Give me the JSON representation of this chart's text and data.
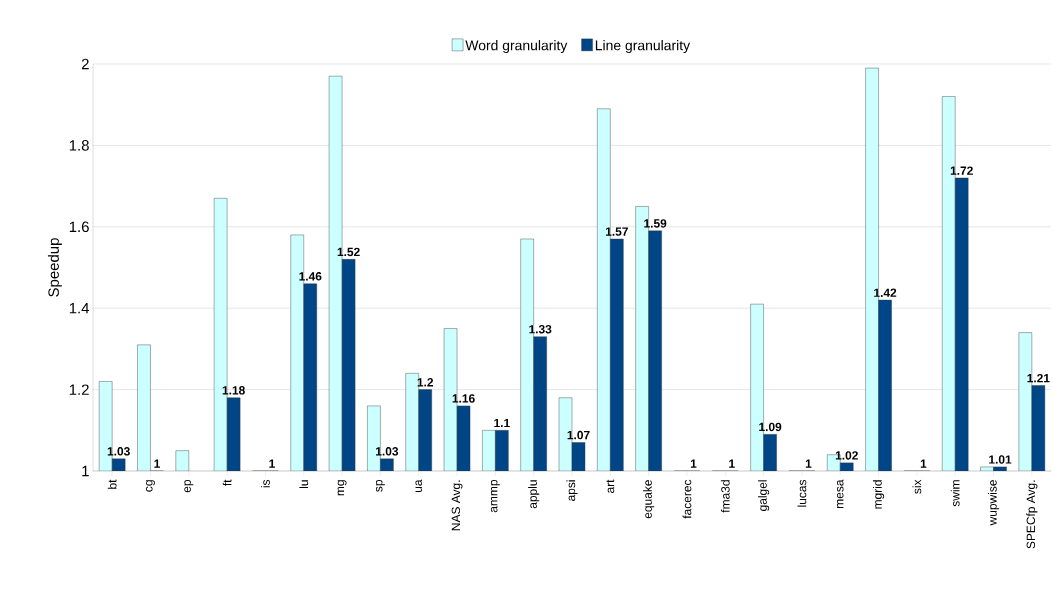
{
  "chart_data": {
    "type": "bar",
    "ylabel": "Speedup",
    "categories": [
      "bt",
      "cg",
      "ep",
      "ft",
      "is",
      "lu",
      "mg",
      "sp",
      "ua",
      "NAS Avg.",
      "ammp",
      "applu",
      "apsi",
      "art",
      "equake",
      "facerec",
      "fma3d",
      "galgel",
      "lucas",
      "mesa",
      "mgrid",
      "six",
      "swim",
      "wupwise",
      "SPECfp Avg."
    ],
    "series": [
      {
        "name": "Word granularity",
        "color": "#ccffff",
        "values": [
          1.22,
          1.31,
          1.05,
          1.67,
          1,
          1.58,
          1.97,
          1.16,
          1.24,
          1.35,
          1.1,
          1.57,
          1.18,
          1.89,
          1.65,
          1,
          1,
          1.41,
          1,
          1.04,
          1.99,
          1,
          1.92,
          1.01,
          1.34
        ]
      },
      {
        "name": "Line granularity",
        "color": "#004586",
        "values": [
          1.03,
          1,
          null,
          1.18,
          1,
          1.46,
          1.52,
          1.03,
          1.2,
          1.16,
          1.1,
          1.33,
          1.07,
          1.57,
          1.59,
          1,
          1,
          1.09,
          1,
          1.02,
          1.42,
          1,
          1.72,
          1.01,
          1.21
        ],
        "value_labels": [
          "1.03",
          "1",
          null,
          "1.18",
          "1",
          "1.46",
          "1.52",
          "1.03",
          "1.2",
          "1.16",
          "1.1",
          "1.33",
          "1.07",
          "1.57",
          "1.59",
          "1",
          "1",
          "1.09",
          "1",
          "1.02",
          "1.42",
          "1",
          "1.72",
          "1.01",
          "1.21"
        ]
      }
    ],
    "ylim": [
      1,
      2
    ],
    "yticks": [
      1,
      1.2,
      1.4,
      1.6,
      1.8,
      2
    ],
    "grid": "y",
    "legend": "top"
  }
}
